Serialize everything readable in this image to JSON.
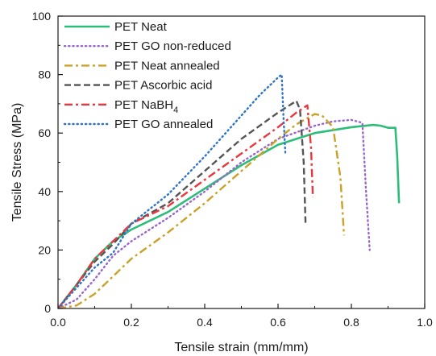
{
  "chart_data": {
    "type": "line",
    "xlabel": "Tensile strain (mm/mm)",
    "ylabel": "Tensile Stress (MPa)",
    "xlim": [
      0.0,
      1.0
    ],
    "ylim": [
      0,
      100
    ],
    "x_ticks": [
      "0.0",
      "0.2",
      "0.4",
      "0.6",
      "0.8",
      "1.0"
    ],
    "y_ticks": [
      "0",
      "20",
      "40",
      "60",
      "80",
      "100"
    ],
    "grid": false,
    "legend_position": "top-left",
    "series": [
      {
        "name": "PET Neat",
        "name_sub": "",
        "color": "#2dbd7a",
        "dash": "solid",
        "x": [
          0.0,
          0.05,
          0.1,
          0.15,
          0.2,
          0.3,
          0.4,
          0.5,
          0.6,
          0.7,
          0.8,
          0.86,
          0.88,
          0.9,
          0.92,
          0.925,
          0.93
        ],
        "y": [
          0.0,
          8.0,
          17.0,
          23.0,
          27.0,
          33.0,
          41.0,
          49.0,
          56.0,
          60.0,
          62.0,
          62.8,
          62.5,
          61.8,
          61.8,
          52.0,
          36.0
        ]
      },
      {
        "name": "PET GO non-reduced",
        "name_sub": "",
        "color": "#9966cc",
        "dash": "dot",
        "x": [
          0.0,
          0.05,
          0.1,
          0.15,
          0.2,
          0.3,
          0.4,
          0.5,
          0.6,
          0.7,
          0.75,
          0.8,
          0.83,
          0.84,
          0.85
        ],
        "y": [
          0.0,
          3.0,
          10.0,
          18.0,
          23.0,
          31.0,
          40.0,
          50.0,
          58.0,
          62.5,
          64.0,
          64.5,
          63.5,
          40.0,
          20.0
        ]
      },
      {
        "name": "PET Neat annealed",
        "name_sub": "",
        "color": "#c9a227",
        "dash": "dashdot",
        "x": [
          0.0,
          0.05,
          0.1,
          0.15,
          0.2,
          0.3,
          0.4,
          0.5,
          0.6,
          0.65,
          0.7,
          0.72,
          0.75,
          0.77,
          0.78
        ],
        "y": [
          0.0,
          1.0,
          5.0,
          11.0,
          17.0,
          26.0,
          36.0,
          47.0,
          58.0,
          63.0,
          66.5,
          66.0,
          62.0,
          45.0,
          25.0
        ]
      },
      {
        "name": "PET Ascorbic acid",
        "name_sub": "",
        "color": "#555555",
        "dash": "dash",
        "x": [
          0.0,
          0.05,
          0.1,
          0.15,
          0.2,
          0.3,
          0.4,
          0.5,
          0.6,
          0.65,
          0.66,
          0.67,
          0.675
        ],
        "y": [
          0.0,
          8.0,
          16.0,
          22.0,
          29.0,
          36.0,
          47.0,
          58.0,
          67.0,
          71.0,
          68.0,
          50.0,
          29.0
        ]
      },
      {
        "name": "PET NaBH",
        "name_sub": "4",
        "color": "#e8383d",
        "dash": "dashdot",
        "x": [
          0.0,
          0.05,
          0.1,
          0.15,
          0.2,
          0.3,
          0.4,
          0.5,
          0.6,
          0.65,
          0.68,
          0.69,
          0.695
        ],
        "y": [
          0.0,
          8.0,
          17.0,
          23.0,
          29.0,
          35.0,
          44.0,
          53.0,
          62.0,
          67.0,
          69.5,
          55.0,
          38.0
        ]
      },
      {
        "name": "PET GO annealed",
        "name_sub": "",
        "color": "#2f73c8",
        "dash": "dot",
        "x": [
          0.0,
          0.05,
          0.1,
          0.15,
          0.2,
          0.3,
          0.4,
          0.5,
          0.55,
          0.6,
          0.61,
          0.615,
          0.62
        ],
        "y": [
          0.0,
          7.0,
          14.0,
          19.0,
          29.0,
          39.0,
          52.0,
          66.0,
          73.0,
          79.0,
          80.0,
          65.0,
          53.0
        ]
      }
    ]
  }
}
